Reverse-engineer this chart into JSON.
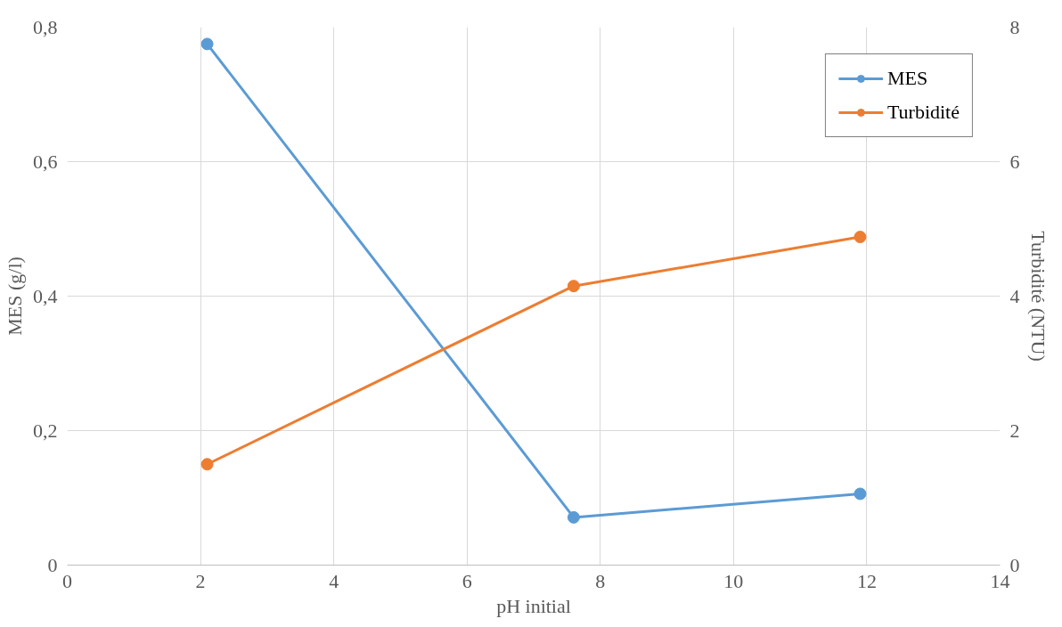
{
  "chart_data": {
    "type": "line",
    "xlabel": "pH initial",
    "ylabel": "MES (g/l)",
    "y2label": "Turbidité (NTU)",
    "x": [
      2.1,
      7.6,
      11.9
    ],
    "series": [
      {
        "name": "MES",
        "color": "#5b9bd5",
        "values": [
          0.775,
          0.071,
          0.106
        ]
      },
      {
        "name": "Turbidité",
        "color": "#ed7d31",
        "values": [
          1.5,
          4.15,
          4.88
        ],
        "axis": "y2"
      }
    ],
    "xlim": [
      0,
      14
    ],
    "xticks": [
      0,
      2,
      4,
      6,
      8,
      10,
      12,
      14
    ],
    "ylim": [
      0,
      0.8
    ],
    "yticks": [
      0,
      {
        "value": 0.2,
        "label": "0,2"
      },
      {
        "value": 0.4,
        "label": "0,4"
      },
      {
        "value": 0.6,
        "label": "0,6"
      },
      {
        "value": 0.8,
        "label": "0,8"
      }
    ],
    "y2lim": [
      0,
      8
    ],
    "y2ticks": [
      0,
      2,
      4,
      6,
      8
    ],
    "grid": true,
    "legend": "top right",
    "marker": "circle",
    "line_style": "solid"
  }
}
